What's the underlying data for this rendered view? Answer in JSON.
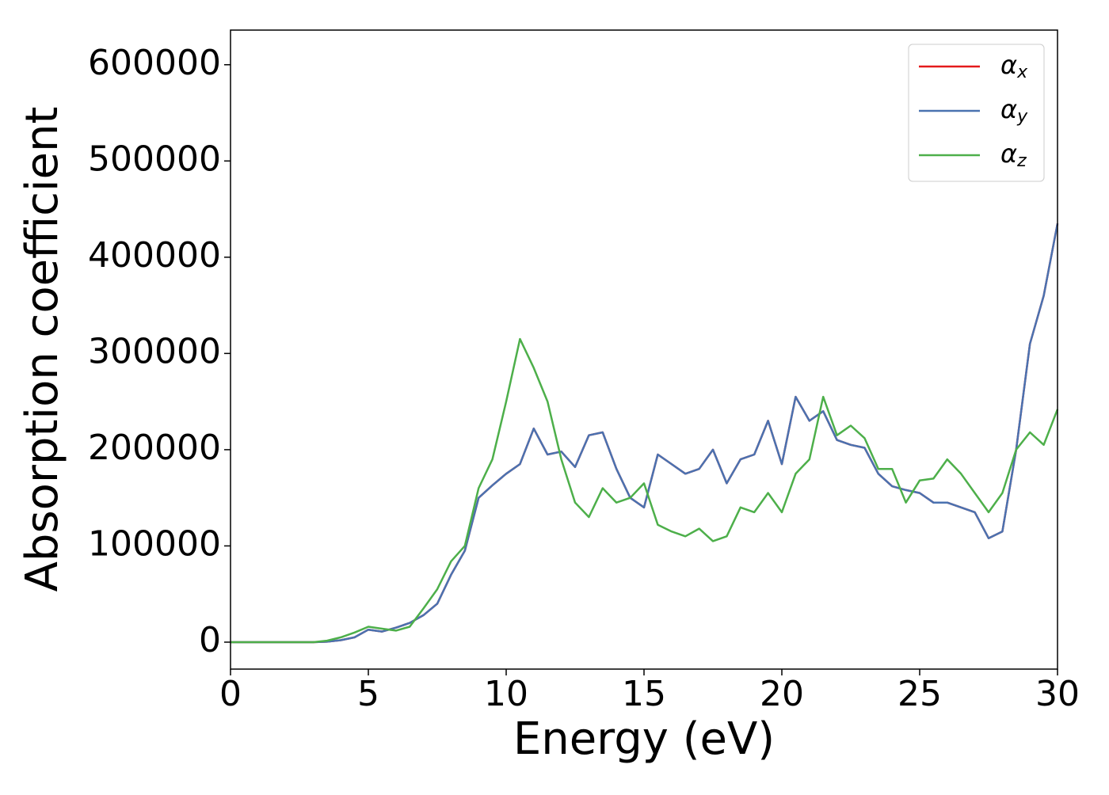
{
  "chart_data": {
    "type": "line",
    "xlabel": "Energy (eV)",
    "ylabel": "Absorption coefficient",
    "x": [
      0,
      0.5,
      1,
      1.5,
      2,
      2.5,
      3,
      3.5,
      4,
      4.5,
      5,
      5.5,
      6,
      6.5,
      7,
      7.5,
      8,
      8.5,
      9,
      9.5,
      10,
      10.5,
      11,
      11.5,
      12,
      12.5,
      13,
      13.5,
      14,
      14.5,
      15,
      15.5,
      16,
      16.5,
      17,
      17.5,
      18,
      18.5,
      19,
      19.5,
      20,
      20.5,
      21,
      21.5,
      22,
      22.5,
      23,
      23.5,
      24,
      24.5,
      25,
      25.5,
      26,
      26.5,
      27,
      27.5,
      28,
      28.5,
      29,
      29.5,
      30
    ],
    "series": [
      {
        "name": "αx",
        "color": "#e41a1c",
        "values": [
          0,
          0,
          0,
          0,
          0,
          0,
          0,
          500,
          2000,
          5000,
          13000,
          11000,
          15000,
          20000,
          28000,
          40000,
          70000,
          95000,
          150000,
          163000,
          175000,
          185000,
          222000,
          195000,
          198000,
          182000,
          215000,
          218000,
          180000,
          150000,
          140000,
          195000,
          185000,
          175000,
          180000,
          200000,
          165000,
          190000,
          195000,
          230000,
          185000,
          255000,
          230000,
          240000,
          210000,
          205000,
          202000,
          175000,
          162000,
          158000,
          155000,
          145000,
          145000,
          140000,
          135000,
          108000,
          115000,
          200000,
          310000,
          360000,
          435000
        ]
      },
      {
        "name": "αy",
        "color": "#4a72b0",
        "values": [
          0,
          0,
          0,
          0,
          0,
          0,
          0,
          500,
          2000,
          5000,
          13000,
          11000,
          15000,
          20000,
          28000,
          40000,
          70000,
          95000,
          150000,
          163000,
          175000,
          185000,
          222000,
          195000,
          198000,
          182000,
          215000,
          218000,
          180000,
          150000,
          140000,
          195000,
          185000,
          175000,
          180000,
          200000,
          165000,
          190000,
          195000,
          230000,
          185000,
          255000,
          230000,
          240000,
          210000,
          205000,
          202000,
          175000,
          162000,
          158000,
          155000,
          145000,
          145000,
          140000,
          135000,
          108000,
          115000,
          200000,
          310000,
          360000,
          435000
        ]
      },
      {
        "name": "αz",
        "color": "#4daf4a",
        "values": [
          0,
          0,
          0,
          0,
          0,
          0,
          0,
          1500,
          5000,
          10000,
          16000,
          14000,
          12000,
          16000,
          35000,
          55000,
          84000,
          100000,
          160000,
          190000,
          250000,
          315000,
          285000,
          250000,
          190000,
          145000,
          130000,
          160000,
          145000,
          150000,
          165000,
          122000,
          115000,
          110000,
          118000,
          105000,
          110000,
          140000,
          135000,
          155000,
          135000,
          175000,
          190000,
          255000,
          215000,
          225000,
          212000,
          180000,
          180000,
          145000,
          168000,
          170000,
          190000,
          175000,
          155000,
          135000,
          155000,
          200000,
          218000,
          205000,
          242000
        ]
      }
    ],
    "xlim": [
      0,
      30
    ],
    "xticks": [
      0,
      5,
      10,
      15,
      20,
      25,
      30
    ],
    "ylim": [
      -28000,
      636000
    ],
    "yticks": [
      0,
      100000,
      200000,
      300000,
      400000,
      500000,
      600000
    ],
    "grid": false,
    "legend": "upper right"
  }
}
